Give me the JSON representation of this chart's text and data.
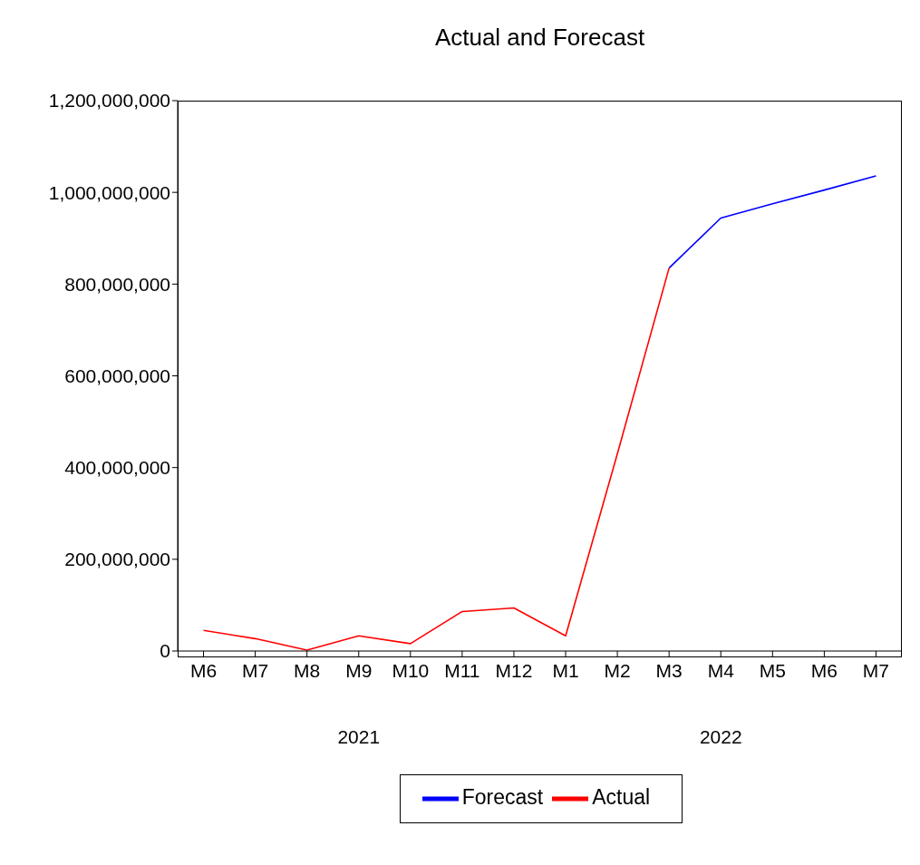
{
  "chart_data": {
    "type": "line",
    "title": "Actual and Forecast",
    "categories": [
      "M6",
      "M7",
      "M8",
      "M9",
      "M10",
      "M11",
      "M12",
      "M1",
      "M2",
      "M3",
      "M4",
      "M5",
      "M6",
      "M7"
    ],
    "series": [
      {
        "name": "Forecast",
        "color": "#0000ff",
        "values": [
          null,
          null,
          null,
          null,
          null,
          null,
          null,
          null,
          null,
          835000000,
          944000000,
          975000000,
          1005000000,
          1036000000
        ]
      },
      {
        "name": "Actual",
        "color": "#ff0000",
        "values": [
          45000000,
          27000000,
          2000000,
          33000000,
          16000000,
          86000000,
          94000000,
          33000000,
          430000000,
          835000000,
          null,
          null,
          null,
          null
        ]
      }
    ],
    "ylim": [
      0,
      1200000000
    ],
    "yticks": [
      {
        "value": 0,
        "label": "0"
      },
      {
        "value": 200000000,
        "label": "200,000,000"
      },
      {
        "value": 400000000,
        "label": "400,000,000"
      },
      {
        "value": 600000000,
        "label": "600,000,000"
      },
      {
        "value": 800000000,
        "label": "800,000,000"
      },
      {
        "value": 1000000000,
        "label": "1,000,000,000"
      },
      {
        "value": 1200000000,
        "label": "1,200,000,000"
      }
    ],
    "annotations": [
      "2021",
      "2022"
    ],
    "grid": false,
    "legend": "bottom",
    "marker": "none",
    "line_style": "solid"
  }
}
